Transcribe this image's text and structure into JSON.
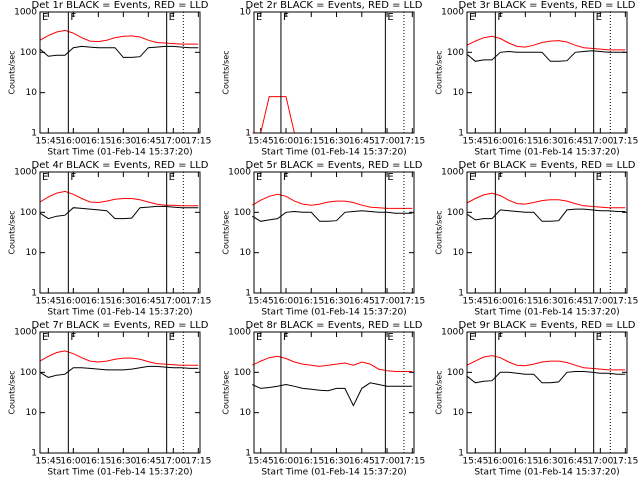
{
  "chart_data": [
    {
      "type": "line",
      "title": "Det 1r BLACK = Events, RED = LLD",
      "xlabel": "Start Time (01-Feb-14 15:37:20)",
      "ylabel": "Counts/sec",
      "log_y": true,
      "x": [
        "15:40",
        "15:45",
        "15:50",
        "15:55",
        "16:00",
        "16:05",
        "16:10",
        "16:15",
        "16:20",
        "16:25",
        "16:30",
        "16:35",
        "16:40",
        "16:45",
        "16:50",
        "16:55",
        "17:00",
        "17:05",
        "17:10",
        "17:15"
      ],
      "xlim": [
        "15:40",
        "17:16"
      ],
      "xticks": [
        "15:45",
        "16:00",
        "16:15",
        "16:30",
        "16:45",
        "17:00",
        "17:15"
      ],
      "ylim": [
        1,
        1000
      ],
      "yticks": [
        1,
        10,
        100,
        1000
      ],
      "markers": [
        {
          "label": "E",
          "x": "15:40"
        },
        {
          "label": "F",
          "x": "15:57"
        },
        {
          "label": "E",
          "x": "16:56"
        }
      ],
      "dotted_lines": [
        "17:06"
      ],
      "series": [
        {
          "name": "BLACK",
          "color": "#000000",
          "values": [
            120,
            80,
            85,
            85,
            130,
            140,
            135,
            130,
            130,
            130,
            75,
            75,
            78,
            130,
            135,
            140,
            140,
            135,
            130,
            130
          ]
        },
        {
          "name": "RED",
          "color": "#ff0000",
          "values": [
            200,
            260,
            320,
            350,
            300,
            230,
            190,
            185,
            200,
            230,
            250,
            255,
            240,
            200,
            175,
            170,
            165,
            160,
            160,
            160
          ]
        }
      ]
    },
    {
      "type": "line",
      "title": "Det 2r BLACK = Events, RED = LLD",
      "xlabel": "Start Time (01-Feb-14 15:37:20)",
      "ylabel": "Counts/sec",
      "log_y": true,
      "x": [
        "15:40",
        "15:45",
        "15:50",
        "15:55",
        "16:00",
        "16:05",
        "16:10",
        "16:15",
        "16:20",
        "16:25",
        "16:30",
        "16:35",
        "16:40",
        "16:45",
        "16:50",
        "16:55",
        "17:00",
        "17:05",
        "17:10",
        "17:15"
      ],
      "xlim": [
        "15:41",
        "17:16"
      ],
      "xticks": [
        "15:45",
        "16:00",
        "16:15",
        "16:30",
        "16:45",
        "17:00",
        "17:15"
      ],
      "ylim": [
        1,
        10
      ],
      "yticks": [
        1,
        10
      ],
      "markers": [
        {
          "label": "E",
          "x": "15:41"
        },
        {
          "label": "F",
          "x": "15:57"
        },
        {
          "label": "E",
          "x": "16:59"
        }
      ],
      "dotted_lines": [
        "17:10"
      ],
      "series": [
        {
          "name": "BLACK",
          "color": "#000000",
          "values": [
            null,
            null,
            null,
            null,
            null,
            null,
            null,
            null,
            null,
            null,
            null,
            null,
            null,
            null,
            null,
            null,
            null,
            null,
            null,
            null
          ]
        },
        {
          "name": "RED",
          "color": "#ff0000",
          "values": [
            1,
            1,
            2,
            2,
            2,
            1,
            1,
            1,
            1,
            1,
            1,
            1,
            1,
            1,
            1,
            1,
            1,
            1,
            1,
            1
          ]
        }
      ]
    },
    {
      "type": "line",
      "title": "Det 3r BLACK = Events, RED = LLD",
      "xlabel": "Start Time (01-Feb-14 15:37:20)",
      "ylabel": "Counts/sec",
      "log_y": true,
      "x": [
        "15:40",
        "15:45",
        "15:50",
        "15:55",
        "16:00",
        "16:05",
        "16:10",
        "16:15",
        "16:20",
        "16:25",
        "16:30",
        "16:35",
        "16:40",
        "16:45",
        "16:50",
        "16:55",
        "17:00",
        "17:05",
        "17:10",
        "17:15"
      ],
      "xlim": [
        "15:40",
        "17:16"
      ],
      "xticks": [
        "15:45",
        "16:00",
        "16:15",
        "16:30",
        "16:45",
        "17:00",
        "17:15"
      ],
      "ylim": [
        1,
        1000
      ],
      "yticks": [
        1,
        10,
        100,
        1000
      ],
      "markers": [
        {
          "label": "E",
          "x": "15:40"
        },
        {
          "label": "F",
          "x": "15:57"
        },
        {
          "label": "E",
          "x": "16:56"
        }
      ],
      "dotted_lines": [
        "17:06"
      ],
      "series": [
        {
          "name": "BLACK",
          "color": "#000000",
          "values": [
            90,
            60,
            65,
            65,
            100,
            105,
            100,
            100,
            100,
            100,
            60,
            60,
            62,
            100,
            105,
            110,
            105,
            100,
            100,
            100
          ]
        },
        {
          "name": "RED",
          "color": "#ff0000",
          "values": [
            150,
            190,
            230,
            250,
            220,
            170,
            140,
            135,
            150,
            175,
            190,
            195,
            180,
            150,
            130,
            125,
            120,
            115,
            115,
            115
          ]
        }
      ]
    },
    {
      "type": "line",
      "title": "Det 4r BLACK = Events, RED = LLD",
      "xlabel": "Start Time (01-Feb-14 15:37:20)",
      "ylabel": "Counts/sec",
      "log_y": true,
      "x": [
        "15:40",
        "15:45",
        "15:50",
        "15:55",
        "16:00",
        "16:05",
        "16:10",
        "16:15",
        "16:20",
        "16:25",
        "16:30",
        "16:35",
        "16:40",
        "16:45",
        "16:50",
        "16:55",
        "17:00",
        "17:05",
        "17:10",
        "17:15"
      ],
      "xlim": [
        "15:40",
        "17:16"
      ],
      "xticks": [
        "15:45",
        "16:00",
        "16:15",
        "16:30",
        "16:45",
        "17:00",
        "17:15"
      ],
      "ylim": [
        1,
        1000
      ],
      "yticks": [
        1,
        10,
        100,
        1000
      ],
      "markers": [
        {
          "label": "E",
          "x": "15:40"
        },
        {
          "label": "F",
          "x": "15:57"
        },
        {
          "label": "E",
          "x": "16:56"
        }
      ],
      "dotted_lines": [
        "17:06"
      ],
      "series": [
        {
          "name": "BLACK",
          "color": "#000000",
          "values": [
            95,
            70,
            80,
            85,
            130,
            125,
            120,
            115,
            110,
            70,
            70,
            72,
            130,
            135,
            140,
            140,
            135,
            130,
            130,
            130
          ]
        },
        {
          "name": "RED",
          "color": "#ff0000",
          "values": [
            180,
            240,
            300,
            330,
            280,
            220,
            180,
            175,
            190,
            210,
            220,
            220,
            205,
            180,
            160,
            150,
            150,
            145,
            145,
            145
          ]
        }
      ]
    },
    {
      "type": "line",
      "title": "Det 5r BLACK = Events, RED = LLD",
      "xlabel": "Start Time (01-Feb-14 15:37:20)",
      "ylabel": "Counts/sec",
      "log_y": true,
      "x": [
        "15:40",
        "15:45",
        "15:50",
        "15:55",
        "16:00",
        "16:05",
        "16:10",
        "16:15",
        "16:20",
        "16:25",
        "16:30",
        "16:35",
        "16:40",
        "16:45",
        "16:50",
        "16:55",
        "17:00",
        "17:05",
        "17:10",
        "17:15"
      ],
      "xlim": [
        "15:41",
        "17:16"
      ],
      "xticks": [
        "15:45",
        "16:00",
        "16:15",
        "16:30",
        "16:45",
        "17:00",
        "17:15"
      ],
      "ylim": [
        1,
        1000
      ],
      "yticks": [
        1,
        10,
        100,
        1000
      ],
      "markers": [
        {
          "label": "E",
          "x": "15:41"
        },
        {
          "label": "F",
          "x": "15:57"
        },
        {
          "label": "E",
          "x": "16:59"
        }
      ],
      "dotted_lines": [
        "17:10"
      ],
      "series": [
        {
          "name": "BLACK",
          "color": "#000000",
          "values": [
            80,
            60,
            65,
            70,
            100,
            105,
            100,
            100,
            60,
            60,
            62,
            100,
            105,
            110,
            105,
            100,
            100,
            95,
            95,
            95
          ]
        },
        {
          "name": "RED",
          "color": "#ff0000",
          "values": [
            150,
            200,
            250,
            280,
            250,
            190,
            160,
            150,
            160,
            180,
            190,
            190,
            175,
            150,
            135,
            130,
            125,
            125,
            125,
            125
          ]
        }
      ]
    },
    {
      "type": "line",
      "title": "Det 6r BLACK = Events, RED = LLD",
      "xlabel": "Start Time (01-Feb-14 15:37:20)",
      "ylabel": "Counts/sec",
      "log_y": true,
      "x": [
        "15:40",
        "15:45",
        "15:50",
        "15:55",
        "16:00",
        "16:05",
        "16:10",
        "16:15",
        "16:20",
        "16:25",
        "16:30",
        "16:35",
        "16:40",
        "16:45",
        "16:50",
        "16:55",
        "17:00",
        "17:05",
        "17:10",
        "17:15"
      ],
      "xlim": [
        "15:40",
        "17:16"
      ],
      "xticks": [
        "15:45",
        "16:00",
        "16:15",
        "16:30",
        "16:45",
        "17:00",
        "17:15"
      ],
      "ylim": [
        1,
        1000
      ],
      "yticks": [
        1,
        10,
        100,
        1000
      ],
      "markers": [
        {
          "label": "E",
          "x": "15:40"
        },
        {
          "label": "F",
          "x": "15:57"
        },
        {
          "label": "E",
          "x": "16:56"
        }
      ],
      "dotted_lines": [
        "17:06"
      ],
      "series": [
        {
          "name": "BLACK",
          "color": "#000000",
          "values": [
            90,
            65,
            70,
            70,
            115,
            110,
            105,
            100,
            100,
            60,
            60,
            62,
            115,
            120,
            120,
            115,
            110,
            110,
            105,
            105
          ]
        },
        {
          "name": "RED",
          "color": "#ff0000",
          "values": [
            170,
            220,
            270,
            300,
            260,
            200,
            165,
            160,
            175,
            195,
            205,
            205,
            190,
            165,
            145,
            140,
            135,
            130,
            130,
            130
          ]
        }
      ]
    },
    {
      "type": "line",
      "title": "Det 7r BLACK = Events, RED = LLD",
      "xlabel": "Start Time (01-Feb-14 15:37:20)",
      "ylabel": "Counts/sec",
      "log_y": true,
      "x": [
        "15:40",
        "15:45",
        "15:50",
        "15:55",
        "16:00",
        "16:05",
        "16:10",
        "16:15",
        "16:20",
        "16:25",
        "16:30",
        "16:35",
        "16:40",
        "16:45",
        "16:50",
        "16:55",
        "17:00",
        "17:05",
        "17:10",
        "17:15"
      ],
      "xlim": [
        "15:40",
        "17:16"
      ],
      "xticks": [
        "15:45",
        "16:00",
        "16:15",
        "16:30",
        "16:45",
        "17:00",
        "17:15"
      ],
      "ylim": [
        1,
        1000
      ],
      "yticks": [
        1,
        10,
        100,
        1000
      ],
      "markers": [
        {
          "label": "E",
          "x": "15:40"
        },
        {
          "label": "F",
          "x": "15:57"
        },
        {
          "label": "E",
          "x": "16:56"
        }
      ],
      "dotted_lines": [
        "17:06"
      ],
      "series": [
        {
          "name": "BLACK",
          "color": "#000000",
          "values": [
            100,
            75,
            85,
            90,
            130,
            130,
            125,
            120,
            115,
            115,
            115,
            120,
            130,
            140,
            140,
            135,
            130,
            130,
            125,
            125
          ]
        },
        {
          "name": "RED",
          "color": "#ff0000",
          "values": [
            190,
            250,
            310,
            340,
            290,
            230,
            190,
            180,
            190,
            210,
            225,
            225,
            210,
            185,
            165,
            160,
            155,
            150,
            150,
            150
          ]
        }
      ]
    },
    {
      "type": "line",
      "title": "Det 8r BLACK = Events, RED = LLD",
      "xlabel": "Start Time (01-Feb-14 15:37:20)",
      "ylabel": "Counts/sec",
      "log_y": true,
      "x": [
        "15:40",
        "15:45",
        "15:50",
        "15:55",
        "16:00",
        "16:05",
        "16:10",
        "16:15",
        "16:20",
        "16:25",
        "16:30",
        "16:35",
        "16:40",
        "16:45",
        "16:50",
        "16:55",
        "17:00",
        "17:05",
        "17:10",
        "17:15"
      ],
      "xlim": [
        "15:41",
        "17:16"
      ],
      "xticks": [
        "15:45",
        "16:00",
        "16:15",
        "16:30",
        "16:45",
        "17:00",
        "17:15"
      ],
      "ylim": [
        1,
        1000
      ],
      "yticks": [
        1,
        10,
        100,
        1000
      ],
      "markers": [
        {
          "label": "E",
          "x": "15:41"
        },
        {
          "label": "F",
          "x": "15:57"
        },
        {
          "label": "E",
          "x": "16:59"
        }
      ],
      "dotted_lines": [
        "17:10"
      ],
      "series": [
        {
          "name": "BLACK",
          "color": "#000000",
          "values": [
            50,
            40,
            42,
            45,
            50,
            45,
            40,
            38,
            36,
            35,
            40,
            40,
            15,
            40,
            55,
            50,
            45,
            45,
            45,
            45
          ]
        },
        {
          "name": "RED",
          "color": "#ff0000",
          "values": [
            150,
            190,
            230,
            250,
            220,
            180,
            160,
            150,
            140,
            150,
            160,
            170,
            150,
            180,
            160,
            120,
            110,
            105,
            105,
            105
          ]
        }
      ]
    },
    {
      "type": "line",
      "title": "Det 9r BLACK = Events, RED = LLD",
      "xlabel": "Start Time (01-Feb-14 15:37:20)",
      "ylabel": "Counts/sec",
      "log_y": true,
      "x": [
        "15:40",
        "15:45",
        "15:50",
        "15:55",
        "16:00",
        "16:05",
        "16:10",
        "16:15",
        "16:20",
        "16:25",
        "16:30",
        "16:35",
        "16:40",
        "16:45",
        "16:50",
        "16:55",
        "17:00",
        "17:05",
        "17:10",
        "17:15"
      ],
      "xlim": [
        "15:40",
        "17:16"
      ],
      "xticks": [
        "15:45",
        "16:00",
        "16:15",
        "16:30",
        "16:45",
        "17:00",
        "17:15"
      ],
      "ylim": [
        1,
        1000
      ],
      "yticks": [
        1,
        10,
        100,
        1000
      ],
      "markers": [
        {
          "label": "E",
          "x": "15:40"
        },
        {
          "label": "F",
          "x": "15:57"
        },
        {
          "label": "E",
          "x": "16:56"
        }
      ],
      "dotted_lines": [
        "17:06"
      ],
      "series": [
        {
          "name": "BLACK",
          "color": "#000000",
          "values": [
            80,
            55,
            60,
            62,
            100,
            100,
            95,
            90,
            90,
            55,
            55,
            58,
            100,
            105,
            105,
            100,
            95,
            95,
            90,
            90
          ]
        },
        {
          "name": "RED",
          "color": "#ff0000",
          "values": [
            150,
            190,
            240,
            260,
            230,
            180,
            150,
            145,
            160,
            180,
            190,
            190,
            175,
            150,
            130,
            125,
            120,
            115,
            115,
            115
          ]
        }
      ]
    }
  ]
}
